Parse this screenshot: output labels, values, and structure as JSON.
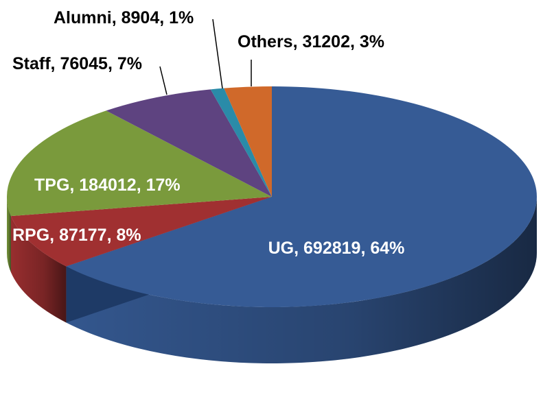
{
  "chart_data": {
    "type": "pie",
    "style": "3d",
    "slices": [
      {
        "category": "UG",
        "value": 692819,
        "percent": "64%",
        "label": "UG, 692819, 64%",
        "color": "#365B95"
      },
      {
        "category": "RPG",
        "value": 87177,
        "percent": "8%",
        "label": "RPG, 87177, 8%",
        "color": "#A03031"
      },
      {
        "category": "TPG",
        "value": 184012,
        "percent": "17%",
        "label": "TPG, 184012, 17%",
        "color": "#7A9A3C"
      },
      {
        "category": "Staff",
        "value": 76045,
        "percent": "7%",
        "label": "Staff, 76045, 7%",
        "color": "#5E4380"
      },
      {
        "category": "Alumni",
        "value": 8904,
        "percent": "1%",
        "label": "Alumni, 8904, 1%",
        "color": "#2A8BA8"
      },
      {
        "category": "Others",
        "value": 31202,
        "percent": "3%",
        "label": "Others, 31202, 3%",
        "color": "#D0692A"
      }
    ],
    "legend": "none"
  }
}
